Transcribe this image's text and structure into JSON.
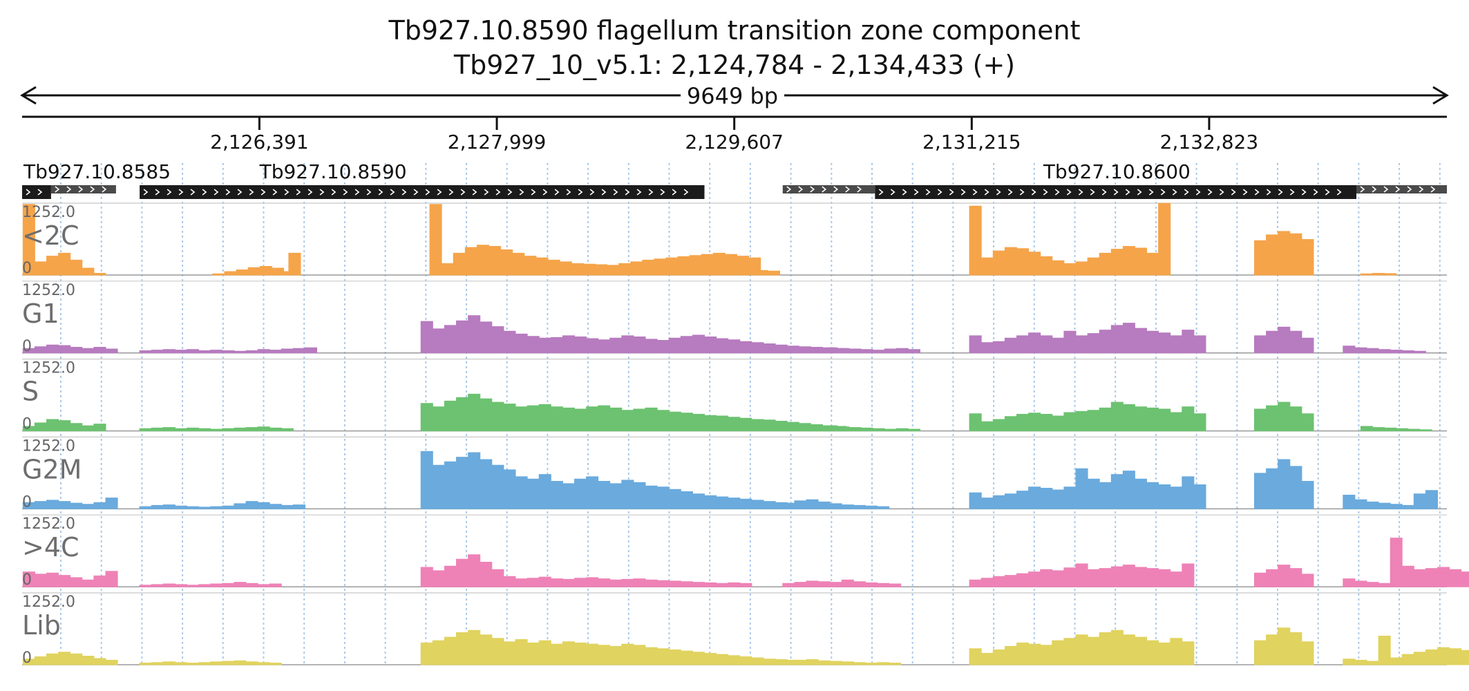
{
  "header": {
    "title_line1": "Tb927.10.8590  flagellum transition zone component",
    "title_line2": "Tb927_10_v5.1: 2,124,784 - 2,134,433 (+)",
    "span_label": "9649 bp"
  },
  "chart_data": {
    "type": "area",
    "title": "Tb927.10.8590  flagellum transition zone component",
    "subtitle": "Tb927_10_v5.1: 2,124,784 - 2,134,433 (+)",
    "region": {
      "start": 2124784,
      "end": 2134433,
      "strand": "+"
    },
    "ticks": [
      {
        "value": 2126391,
        "label": "2,126,391"
      },
      {
        "value": 2127999,
        "label": "2,127,999"
      },
      {
        "value": 2129607,
        "label": "2,129,607"
      },
      {
        "value": 2131215,
        "label": "2,131,215"
      },
      {
        "value": 2132823,
        "label": "2,132,823"
      }
    ],
    "genes": [
      {
        "label": "Tb927.10.8585",
        "cds": [
          2124784,
          2124980
        ],
        "utr": [
          2124980,
          2125420
        ]
      },
      {
        "label": "Tb927.10.8590",
        "cds": [
          2125580,
          2129405
        ],
        "utr": null
      },
      {
        "label": "Tb927.10.8600",
        "cds": [
          2130560,
          2133820
        ],
        "utr": [
          2129935,
          2130560
        ],
        "utr3": [
          2133820,
          2134433
        ]
      }
    ],
    "ylim": [
      0,
      1252.0
    ],
    "ymax_label": "1252.0",
    "ymin_label": "0",
    "grid": true,
    "bin_bp": 80,
    "series": [
      {
        "name": "<2C",
        "color": "#f5a44a",
        "segments": [
          [
            2124790,
            [
              1230,
              230,
              330,
              380,
              260,
              120,
              30
            ]
          ],
          [
            2126075,
            [
              20,
              60,
              90,
              130,
              150,
              120,
              60
            ]
          ],
          [
            2126590,
            [
              380
            ]
          ],
          [
            2127545,
            [
              1230,
              200,
              380,
              480,
              520,
              500,
              440,
              380,
              330,
              300,
              260,
              230,
              200,
              190,
              180,
              170,
              200,
              230,
              260,
              280,
              300,
              320,
              340,
              360,
              380,
              360,
              330,
              300
            ]
          ],
          [
            2129675,
            [
              60,
              80,
              70
            ]
          ],
          [
            2131200,
            [
              1200,
              300,
              420,
              480,
              460,
              400,
              320,
              250,
              200,
              230,
              300,
              380,
              450,
              500,
              470,
              380,
              1250
            ]
          ],
          [
            2133130,
            [
              600,
              700,
              760,
              720,
              620
            ]
          ],
          [
            2133850,
            [
              20,
              30,
              25
            ]
          ]
        ]
      },
      {
        "name": "G1",
        "color": "#b77bbf",
        "segments": [
          [
            2124790,
            [
              80,
              110,
              140,
              130,
              100,
              80,
              100,
              70
            ]
          ],
          [
            2125580,
            [
              40,
              50,
              60,
              50,
              60,
              40,
              50,
              40,
              30,
              40,
              60,
              50,
              70,
              80,
              90
            ]
          ],
          [
            2127485,
            [
              550,
              420,
              480,
              560,
              650,
              540,
              460,
              380,
              330,
              290,
              260,
              270,
              300,
              280,
              250,
              230,
              260,
              300,
              280,
              240,
              220,
              260,
              290,
              310,
              280,
              250,
              230,
              200,
              180,
              160,
              140,
              120,
              110,
              100,
              90,
              80
            ]
          ],
          [
            2130065,
            [
              60,
              80,
              90,
              80,
              70,
              60,
              50,
              70,
              80,
              60
            ]
          ],
          [
            2131200,
            [
              300,
              180,
              200,
              260,
              300,
              350,
              300,
              260,
              380,
              300,
              340,
              400,
              480,
              520,
              430,
              380,
              350,
              300,
              400,
              300
            ]
          ],
          [
            2133130,
            [
              300,
              380,
              450,
              380,
              260
            ]
          ],
          [
            2133730,
            [
              120,
              90,
              80,
              60,
              50,
              40,
              30
            ]
          ]
        ]
      },
      {
        "name": "S",
        "color": "#6cc270",
        "segments": [
          [
            2124790,
            [
              80,
              140,
              200,
              180,
              130,
              90,
              120
            ]
          ],
          [
            2125580,
            [
              40,
              50,
              60,
              40,
              50,
              40,
              30,
              40,
              50,
              60,
              70,
              50,
              40
            ]
          ],
          [
            2127485,
            [
              480,
              420,
              520,
              580,
              640,
              560,
              500,
              470,
              420,
              440,
              460,
              420,
              400,
              380,
              420,
              440,
              400,
              360,
              380,
              400,
              360,
              330,
              310,
              290,
              270,
              260,
              240,
              220,
              200,
              190,
              170,
              150,
              130,
              110,
              90,
              80
            ]
          ],
          [
            2130065,
            [
              70,
              80,
              90,
              70,
              60,
              50,
              40,
              30,
              40,
              30
            ]
          ],
          [
            2131200,
            [
              300,
              160,
              200,
              250,
              290,
              310,
              290,
              260,
              320,
              340,
              360,
              400,
              500,
              460,
              420,
              400,
              380,
              320,
              420,
              300
            ]
          ],
          [
            2133130,
            [
              380,
              440,
              500,
              420,
              300
            ]
          ],
          [
            2133850,
            [
              80,
              60,
              50,
              40,
              30,
              20
            ]
          ]
        ]
      },
      {
        "name": "G2M",
        "color": "#6aaadd",
        "segments": [
          [
            2124790,
            [
              110,
              130,
              150,
              130,
              100,
              80,
              110,
              190
            ]
          ],
          [
            2125580,
            [
              40,
              60,
              70,
              50,
              40,
              30,
              40,
              50,
              90,
              130,
              110,
              80,
              60,
              70
            ]
          ],
          [
            2127485,
            [
              1000,
              760,
              820,
              900,
              980,
              860,
              760,
              680,
              560,
              520,
              600,
              480,
              440,
              520,
              560,
              480,
              440,
              500,
              460,
              400,
              380,
              340,
              300,
              260,
              230,
              210,
              190,
              170,
              150,
              130,
              110,
              90,
              80
            ]
          ],
          [
            2129935,
            [
              100,
              140,
              160,
              120,
              90,
              70,
              60,
              50,
              40
            ]
          ],
          [
            2131200,
            [
              280,
              190,
              230,
              260,
              310,
              380,
              360,
              330,
              380,
              700,
              520,
              460,
              600,
              660,
              520,
              460,
              420,
              380,
              560,
              420
            ]
          ],
          [
            2133130,
            [
              620,
              700,
              860,
              740,
              480
            ]
          ],
          [
            2133730,
            [
              240,
              160,
              120,
              100,
              80,
              60,
              260,
              320
            ]
          ]
        ]
      },
      {
        "name": ">4C",
        "color": "#ee82b6",
        "segments": [
          [
            2124790,
            [
              260,
              220,
              240,
              200,
              160,
              120,
              190,
              270
            ]
          ],
          [
            2125580,
            [
              30,
              40,
              50,
              40,
              30,
              40,
              50,
              60,
              80,
              60,
              40,
              50
            ]
          ],
          [
            2127485,
            [
              340,
              280,
              360,
              480,
              560,
              430,
              300,
              180,
              140,
              150,
              170,
              140,
              130,
              150,
              160,
              140,
              120,
              130,
              140,
              120,
              110,
              100,
              90,
              80,
              70,
              60,
              70,
              60
            ]
          ],
          [
            2129935,
            [
              60,
              80,
              100,
              90,
              80,
              120,
              90,
              70,
              60,
              50
            ]
          ],
          [
            2131200,
            [
              120,
              150,
              180,
              200,
              230,
              260,
              300,
              280,
              330,
              400,
              300,
              320,
              350,
              380,
              340,
              320,
              300,
              260,
              400
            ]
          ],
          [
            2133130,
            [
              240,
              300,
              380,
              320,
              220
            ]
          ],
          [
            2133730,
            [
              140,
              100,
              80,
              60,
              850,
              360,
              300,
              320,
              340,
              300,
              260
            ]
          ]
        ]
      },
      {
        "name": "Lib",
        "color": "#e0d35f",
        "segments": [
          [
            2124790,
            [
              100,
              140,
              190,
              220,
              190,
              150,
              110,
              80
            ]
          ],
          [
            2125580,
            [
              30,
              40,
              50,
              40,
              30,
              40,
              50,
              60,
              70,
              50,
              40,
              30
            ]
          ],
          [
            2127485,
            [
              380,
              420,
              480,
              560,
              600,
              520,
              460,
              400,
              440,
              380,
              420,
              360,
              400,
              380,
              360,
              340,
              320,
              360,
              340,
              300,
              280,
              260,
              240,
              220,
              200,
              180,
              160,
              140,
              120,
              100,
              90,
              80
            ]
          ],
          [
            2129935,
            [
              60,
              80,
              90,
              70,
              60,
              50,
              40,
              30,
              40,
              30
            ]
          ],
          [
            2131200,
            [
              280,
              200,
              260,
              320,
              380,
              360,
              340,
              420,
              460,
              520,
              480,
              560,
              600,
              520,
              480,
              420,
              380,
              460,
              400
            ]
          ],
          [
            2133130,
            [
              420,
              520,
              640,
              560,
              400
            ]
          ],
          [
            2133730,
            [
              100,
              80,
              60,
              500,
              120,
              180,
              220,
              260,
              300,
              280,
              250
            ]
          ]
        ]
      }
    ]
  }
}
